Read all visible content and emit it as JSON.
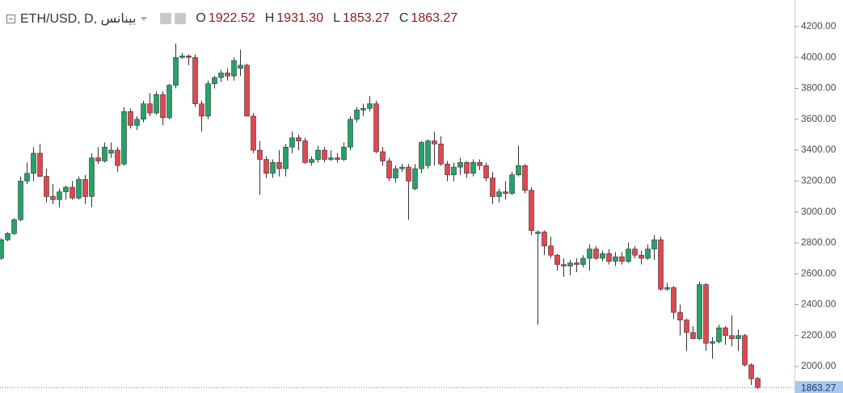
{
  "chart_data": {
    "type": "candlestick",
    "symbol": "ETH/USD, D, بينانس",
    "ohlc_header": [
      {
        "label": "O",
        "text": "1922.52"
      },
      {
        "label": "H",
        "text": "1931.30"
      },
      {
        "label": "L",
        "text": "1853.27"
      },
      {
        "label": "C",
        "text": "1863.27"
      }
    ],
    "up_color": "#26a269",
    "down_color": "#e0484f",
    "ylim": [
      1828,
      4372
    ],
    "yticks": [
      {
        "value": 2000,
        "label": "2000.00"
      },
      {
        "value": 2200,
        "label": "2200.00"
      },
      {
        "value": 2400,
        "label": "2400.00"
      },
      {
        "value": 2600,
        "label": "2600.00"
      },
      {
        "value": 2800,
        "label": "2800.00"
      },
      {
        "value": 3000,
        "label": "3000.00"
      },
      {
        "value": 3200,
        "label": "3200.00"
      },
      {
        "value": 3400,
        "label": "3400.00"
      },
      {
        "value": 3600,
        "label": "3600.00"
      },
      {
        "value": 3800,
        "label": "3800.00"
      },
      {
        "value": 4000,
        "label": "4000.00"
      },
      {
        "value": 4200,
        "label": "4200.00"
      }
    ],
    "last_price": {
      "value": 1863.27,
      "label": "1863.27"
    },
    "ohlc": [
      [
        2700,
        2830,
        2690,
        2820
      ],
      [
        2820,
        2870,
        2810,
        2860
      ],
      [
        2860,
        2960,
        2850,
        2950
      ],
      [
        2950,
        3230,
        2940,
        3200
      ],
      [
        3200,
        3320,
        3180,
        3250
      ],
      [
        3250,
        3420,
        3200,
        3380
      ],
      [
        3380,
        3440,
        3230,
        3230
      ],
      [
        3230,
        3280,
        3060,
        3100
      ],
      [
        3100,
        3180,
        3050,
        3080
      ],
      [
        3080,
        3150,
        3030,
        3130
      ],
      [
        3130,
        3170,
        3080,
        3160
      ],
      [
        3160,
        3200,
        3080,
        3090
      ],
      [
        3090,
        3230,
        3080,
        3210
      ],
      [
        3210,
        3240,
        3050,
        3100
      ],
      [
        3100,
        3380,
        3030,
        3350
      ],
      [
        3350,
        3420,
        3310,
        3330
      ],
      [
        3330,
        3450,
        3320,
        3420
      ],
      [
        3380,
        3450,
        3350,
        3400
      ],
      [
        3400,
        3420,
        3260,
        3300
      ],
      [
        3310,
        3680,
        3300,
        3650
      ],
      [
        3650,
        3670,
        3540,
        3560
      ],
      [
        3560,
        3620,
        3530,
        3600
      ],
      [
        3600,
        3720,
        3580,
        3700
      ],
      [
        3700,
        3770,
        3620,
        3640
      ],
      [
        3640,
        3780,
        3630,
        3760
      ],
      [
        3760,
        3780,
        3560,
        3610
      ],
      [
        3610,
        3830,
        3600,
        3820
      ],
      [
        3820,
        4090,
        3800,
        4000
      ],
      [
        4000,
        4030,
        3990,
        4010
      ],
      [
        4010,
        4020,
        3950,
        4000
      ],
      [
        4000,
        4020,
        3680,
        3700
      ],
      [
        3700,
        3720,
        3520,
        3620
      ],
      [
        3620,
        3850,
        3600,
        3830
      ],
      [
        3830,
        3880,
        3800,
        3870
      ],
      [
        3870,
        3920,
        3840,
        3900
      ],
      [
        3900,
        3930,
        3850,
        3880
      ],
      [
        3880,
        4000,
        3850,
        3980
      ],
      [
        3930,
        4050,
        3880,
        3950
      ],
      [
        3950,
        3960,
        3620,
        3620
      ],
      [
        3620,
        3640,
        3380,
        3400
      ],
      [
        3400,
        3460,
        3110,
        3340
      ],
      [
        3340,
        3360,
        3220,
        3250
      ],
      [
        3250,
        3340,
        3220,
        3320
      ],
      [
        3320,
        3400,
        3230,
        3280
      ],
      [
        3280,
        3440,
        3230,
        3420
      ],
      [
        3420,
        3520,
        3380,
        3480
      ],
      [
        3480,
        3500,
        3400,
        3460
      ],
      [
        3460,
        3480,
        3310,
        3320
      ],
      [
        3320,
        3360,
        3300,
        3340
      ],
      [
        3340,
        3430,
        3320,
        3400
      ],
      [
        3400,
        3420,
        3320,
        3340
      ],
      [
        3340,
        3400,
        3330,
        3350
      ],
      [
        3350,
        3380,
        3320,
        3340
      ],
      [
        3340,
        3450,
        3330,
        3420
      ],
      [
        3420,
        3620,
        3400,
        3600
      ],
      [
        3600,
        3680,
        3580,
        3660
      ],
      [
        3660,
        3700,
        3620,
        3670
      ],
      [
        3670,
        3750,
        3650,
        3700
      ],
      [
        3700,
        3720,
        3380,
        3390
      ],
      [
        3390,
        3420,
        3300,
        3330
      ],
      [
        3330,
        3350,
        3200,
        3220
      ],
      [
        3220,
        3300,
        3190,
        3280
      ],
      [
        3280,
        3310,
        3260,
        3290
      ],
      [
        3290,
        3310,
        2950,
        3200
      ],
      [
        3150,
        3310,
        3140,
        3280
      ],
      [
        3280,
        3460,
        3250,
        3450
      ],
      [
        3300,
        3470,
        3280,
        3460
      ],
      [
        3460,
        3520,
        3300,
        3440
      ],
      [
        3440,
        3490,
        3300,
        3310
      ],
      [
        3310,
        3330,
        3200,
        3240
      ],
      [
        3240,
        3320,
        3200,
        3290
      ],
      [
        3290,
        3350,
        3240,
        3320
      ],
      [
        3320,
        3330,
        3220,
        3250
      ],
      [
        3250,
        3340,
        3230,
        3320
      ],
      [
        3320,
        3340,
        3270,
        3300
      ],
      [
        3300,
        3320,
        3200,
        3220
      ],
      [
        3220,
        3260,
        3050,
        3100
      ],
      [
        3100,
        3150,
        3060,
        3130
      ],
      [
        3130,
        3200,
        3080,
        3120
      ],
      [
        3120,
        3260,
        3110,
        3240
      ],
      [
        3240,
        3430,
        3230,
        3300
      ],
      [
        3300,
        3310,
        3120,
        3140
      ],
      [
        3140,
        3160,
        2850,
        2880
      ],
      [
        2860,
        2880,
        2270,
        2870
      ],
      [
        2870,
        2880,
        2720,
        2780
      ],
      [
        2780,
        2840,
        2700,
        2720
      ],
      [
        2720,
        2730,
        2620,
        2660
      ],
      [
        2660,
        2700,
        2580,
        2650
      ],
      [
        2650,
        2690,
        2590,
        2670
      ],
      [
        2670,
        2700,
        2610,
        2660
      ],
      [
        2660,
        2720,
        2640,
        2700
      ],
      [
        2700,
        2790,
        2620,
        2760
      ],
      [
        2760,
        2780,
        2690,
        2700
      ],
      [
        2700,
        2750,
        2680,
        2730
      ],
      [
        2730,
        2760,
        2660,
        2680
      ],
      [
        2680,
        2740,
        2650,
        2710
      ],
      [
        2710,
        2740,
        2660,
        2680
      ],
      [
        2680,
        2800,
        2670,
        2760
      ],
      [
        2760,
        2780,
        2700,
        2720
      ],
      [
        2720,
        2750,
        2660,
        2700
      ],
      [
        2700,
        2790,
        2690,
        2760
      ],
      [
        2760,
        2850,
        2690,
        2820
      ],
      [
        2820,
        2840,
        2490,
        2500
      ],
      [
        2500,
        2540,
        2490,
        2510
      ],
      [
        2510,
        2520,
        2310,
        2350
      ],
      [
        2350,
        2400,
        2200,
        2300
      ],
      [
        2300,
        2310,
        2100,
        2220
      ],
      [
        2220,
        2260,
        2180,
        2180
      ],
      [
        2180,
        2550,
        2170,
        2530
      ],
      [
        2530,
        2540,
        2100,
        2150
      ],
      [
        2150,
        2190,
        2050,
        2160
      ],
      [
        2160,
        2270,
        2150,
        2250
      ],
      [
        2250,
        2260,
        2140,
        2200
      ],
      [
        2200,
        2330,
        2130,
        2180
      ],
      [
        2180,
        2240,
        2100,
        2200
      ],
      [
        2200,
        2210,
        2000,
        2010
      ],
      [
        2010,
        2020,
        1880,
        1920
      ],
      [
        1922.52,
        1931.3,
        1853.27,
        1863.27
      ]
    ]
  }
}
